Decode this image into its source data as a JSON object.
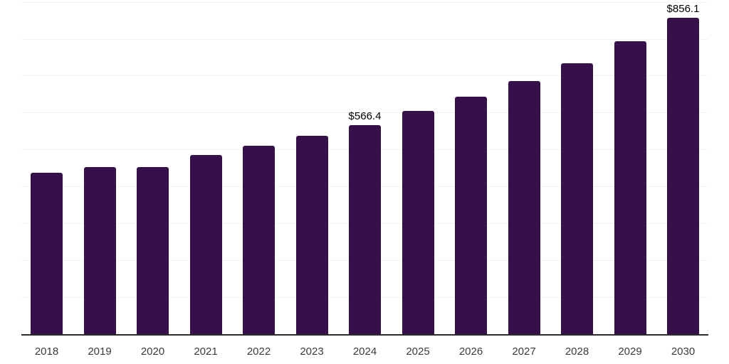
{
  "chart_data": {
    "type": "bar",
    "title": "",
    "xlabel": "",
    "ylabel": "",
    "categories": [
      "2018",
      "2019",
      "2020",
      "2021",
      "2022",
      "2023",
      "2024",
      "2025",
      "2026",
      "2027",
      "2028",
      "2029",
      "2030"
    ],
    "values": [
      436.8,
      453.1,
      452.2,
      484.7,
      509.7,
      537.1,
      566.4,
      604.5,
      643.2,
      686.0,
      733.8,
      793.2,
      856.1
    ],
    "bar_labels": [
      null,
      null,
      null,
      null,
      null,
      null,
      "$566.4",
      null,
      null,
      null,
      null,
      null,
      "$856.1"
    ],
    "value_prefix": "$",
    "ylim": [
      0,
      905
    ],
    "gridline_step": 100,
    "grid": "horizontal",
    "y_tick_labels_visible": false,
    "legend": "none"
  },
  "colors": {
    "bar": "#361149",
    "gridline": "#f2f2f2",
    "axis_line": "#2b2b2b",
    "tick_label": "#3b3b3b",
    "data_label": "#000000",
    "background": "#ffffff"
  }
}
